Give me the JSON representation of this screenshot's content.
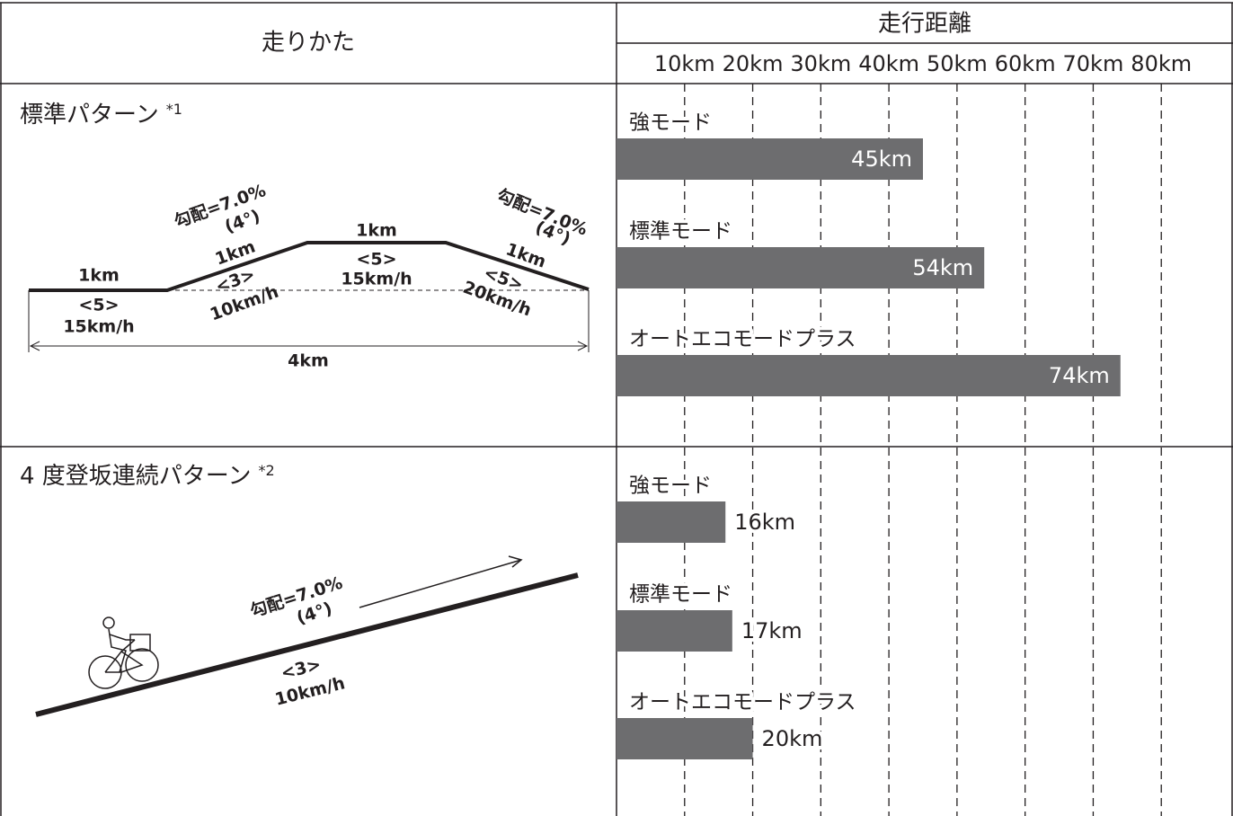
{
  "table": {
    "header": {
      "left": "走りかた",
      "right": "走行距離"
    },
    "axis": {
      "xlim": [
        0,
        90
      ],
      "xticks": [
        {
          "value": 10,
          "label": "10km"
        },
        {
          "value": 20,
          "label": "20km"
        },
        {
          "value": 30,
          "label": "30km"
        },
        {
          "value": 40,
          "label": "40km"
        },
        {
          "value": 50,
          "label": "50km"
        },
        {
          "value": 60,
          "label": "60km"
        },
        {
          "value": 70,
          "label": "70km"
        },
        {
          "value": 80,
          "label": "80km"
        }
      ],
      "grid": true,
      "color": "#6d6d6f"
    },
    "rows": [
      {
        "title": "標準パターン",
        "note": "*1",
        "diagram": [
          "1km",
          "<5>",
          "15km/h",
          "勾配=7.0%",
          "(4°)",
          "1km",
          "<3>",
          "10km/h",
          "1km",
          "<5>",
          "15km/h",
          "勾配=7.0%",
          "(4°)",
          "1km",
          "<5>",
          "20km/h",
          "4km"
        ],
        "chart": {
          "type": "bar",
          "categories": [
            "強モード",
            "標準モード",
            "オートエコモードプラス"
          ],
          "values": [
            45,
            54,
            74
          ],
          "value_labels": [
            "45km",
            "54km",
            "74km"
          ]
        }
      },
      {
        "title": "4 度登坂連続パターン",
        "note": "*2",
        "diagram": [
          "勾配=7.0%",
          "(4°)",
          "<3>",
          "10km/h"
        ],
        "chart": {
          "type": "bar",
          "categories": [
            "強モード",
            "標準モード",
            "オートエコモードプラス"
          ],
          "values": [
            16,
            17,
            20
          ],
          "value_labels": [
            "16km",
            "17km",
            "20km"
          ]
        }
      }
    ]
  }
}
